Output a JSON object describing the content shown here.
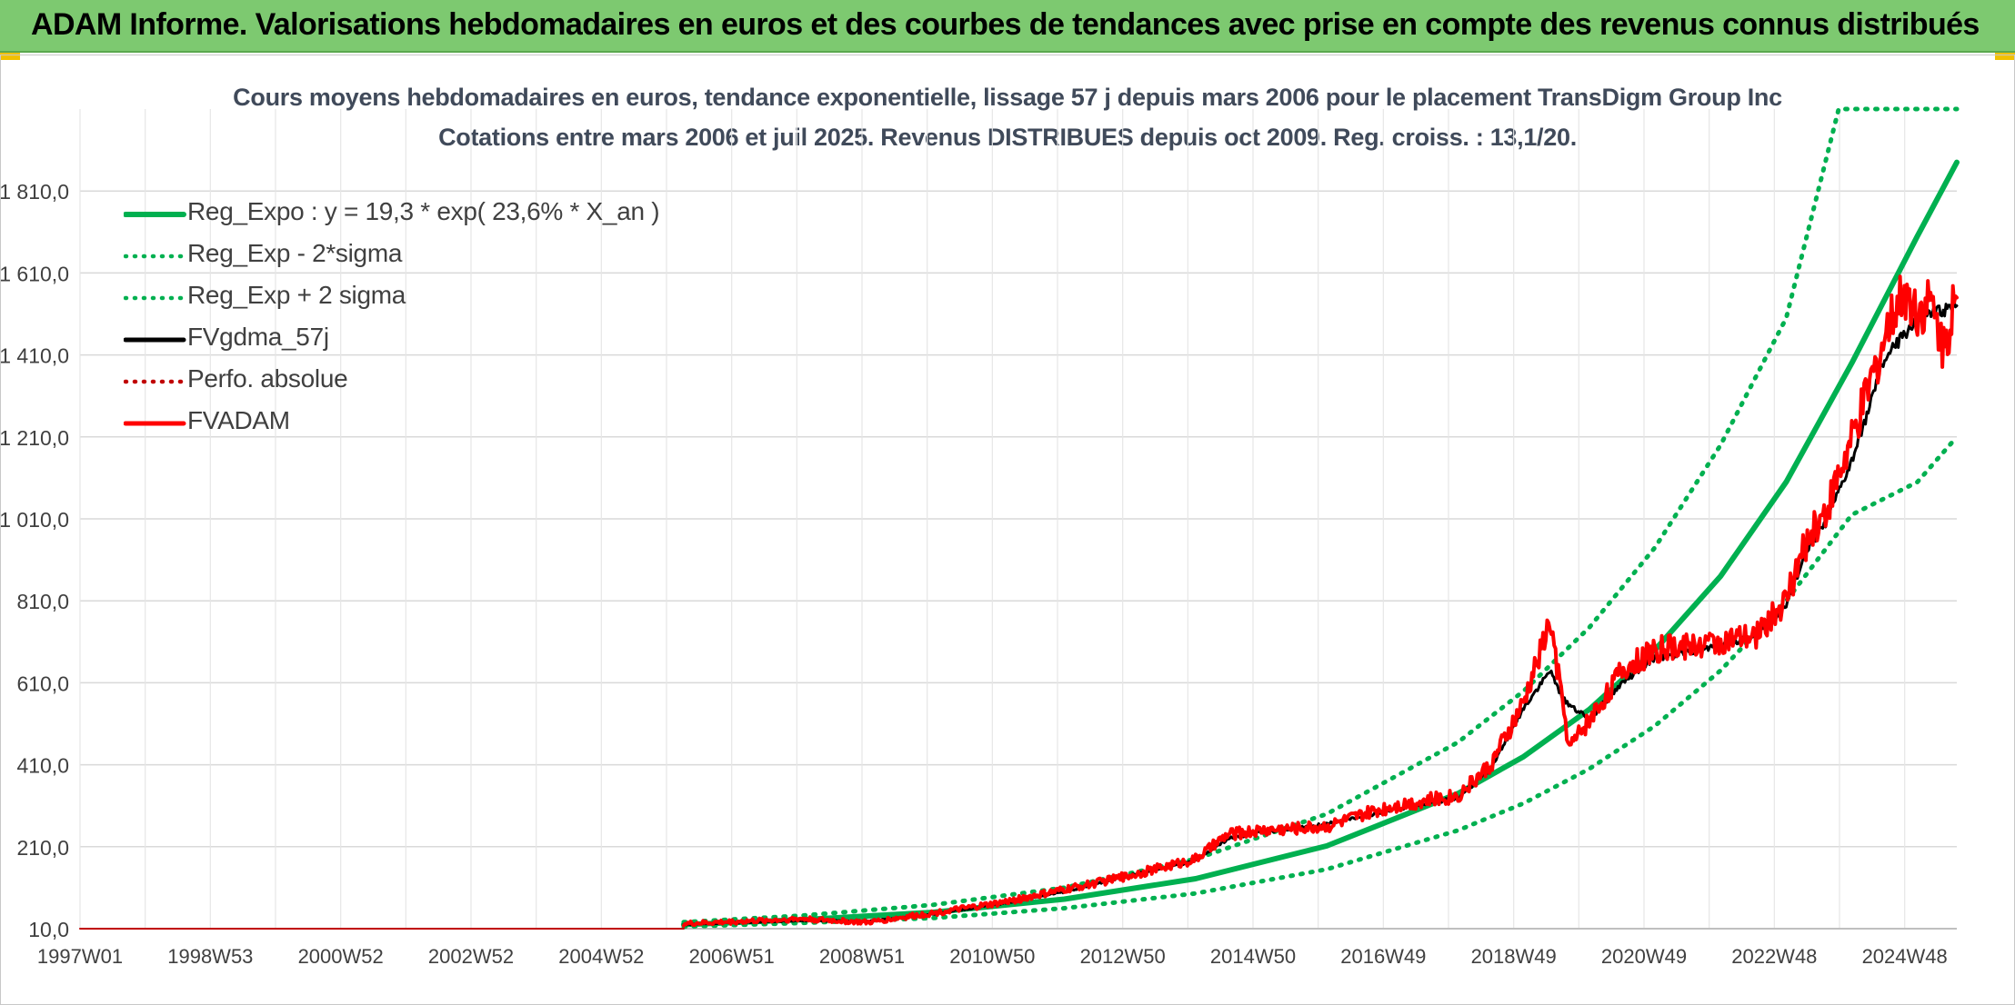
{
  "banner": {
    "title": "ADAM Informe. Valorisations hebdomadaires en euros et des courbes de tendances avec prise en compte des revenus connus distribués"
  },
  "colors": {
    "banner_bg": "#7dc970",
    "reg_green": "#00b050",
    "dotted_green": "#00b050",
    "fvgdma_black": "#000000",
    "fvadam_red": "#ff0000",
    "perfo_red": "#c00000",
    "grid": "#d9d9d9"
  },
  "chart_data": {
    "type": "line",
    "title": "Cours moyens hebdomadaires en euros, tendance exponentielle, lissage 57 j depuis mars 2006 pour le placement TransDigm Group Inc",
    "subtitle": "Cotations entre mars 2006 et juil 2025. Revenus DISTRIBUES depuis oct 2009. Reg. croiss. : 13,1/20.",
    "x_tick_labels": [
      "1997W01",
      "1998W53",
      "2000W52",
      "2002W52",
      "2004W52",
      "2006W51",
      "2008W51",
      "2010W50",
      "2012W50",
      "2014W50",
      "2016W49",
      "2018W49",
      "2020W49",
      "2022W48",
      "2024W48"
    ],
    "x_range_years": [
      1997.0,
      2025.6
    ],
    "y_tick_labels": [
      "10,0",
      "210,0",
      "410,0",
      "610,0",
      "810,0",
      "1 010,0",
      "1 210,0",
      "1 410,0",
      "1 610,0",
      "1 810,0"
    ],
    "ylim": [
      10,
      2010
    ],
    "grid": true,
    "legend_position": "top-left",
    "legend": [
      {
        "label": "Reg_Expo : y = 19,3 * exp( 23,6% *  X_an )",
        "style": "solid",
        "color": "#00b050"
      },
      {
        "label": "Reg_Exp - 2*sigma",
        "style": "dotted",
        "color": "#00b050"
      },
      {
        "label": "Reg_Exp + 2 sigma",
        "style": "dotted",
        "color": "#00b050"
      },
      {
        "label": "FVgdma_57j",
        "style": "solid",
        "color": "#000000"
      },
      {
        "label": "Perfo. absolue",
        "style": "dotted",
        "color": "#c00000"
      },
      {
        "label": "FVADAM",
        "style": "solid",
        "color": "#ff0000"
      }
    ],
    "series": [
      {
        "name": "Reg_Expo : y = 19,3 * exp( 23,6% *  X_an )",
        "x": [
          2006.2,
          2008,
          2010,
          2012,
          2014,
          2016,
          2018,
          2019,
          2020,
          2021,
          2022,
          2023,
          2024,
          2025,
          2025.6
        ],
        "values": [
          20,
          32,
          50,
          82,
          132,
          212,
          340,
          430,
          545,
          690,
          870,
          1100,
          1390,
          1700,
          1880
        ]
      },
      {
        "name": "Reg_Exp - 2*sigma",
        "x": [
          2006.2,
          2008,
          2010,
          2012,
          2014,
          2016,
          2018,
          2019,
          2020,
          2021,
          2022,
          2023,
          2024,
          2025,
          2025.6
        ],
        "values": [
          15,
          24,
          36,
          60,
          96,
          155,
          250,
          316,
          400,
          505,
          640,
          810,
          1020,
          1100,
          1210
        ]
      },
      {
        "name": "Reg_Exp + 2 sigma",
        "x": [
          2006.2,
          2008,
          2010,
          2012,
          2014,
          2016,
          2018,
          2019,
          2020,
          2021,
          2022,
          2023,
          2023.8,
          2025,
          2025.6
        ],
        "values": [
          26,
          42,
          68,
          110,
          180,
          290,
          465,
          590,
          745,
          940,
          1190,
          1500,
          2010,
          2010,
          2010
        ]
      },
      {
        "name": "FVgdma_57j",
        "x": [
          2006.2,
          2007,
          2008,
          2009,
          2010,
          2011,
          2012,
          2013,
          2014,
          2014.5,
          2015,
          2016,
          2017,
          2018,
          2018.5,
          2019,
          2019.4,
          2019.6,
          2020,
          2020.5,
          2021,
          2022,
          2022.5,
          2023,
          2023.3,
          2023.6,
          2024,
          2024.5,
          2025,
          2025.6
        ],
        "values": [
          20,
          25,
          30,
          28,
          45,
          70,
          100,
          140,
          175,
          230,
          245,
          265,
          300,
          330,
          400,
          550,
          640,
          570,
          520,
          610,
          670,
          700,
          720,
          800,
          930,
          1000,
          1150,
          1400,
          1500,
          1530
        ]
      },
      {
        "name": "Perfo. absolue",
        "x": [
          1997.0,
          2006.2
        ],
        "values": [
          10,
          10
        ]
      },
      {
        "name": "FVADAM",
        "x": [
          2006.2,
          2007,
          2008,
          2009,
          2010,
          2011,
          2012,
          2013,
          2014,
          2014.5,
          2015,
          2016,
          2017,
          2018,
          2018.5,
          2019,
          2019.4,
          2019.7,
          2019.9,
          2020,
          2020.5,
          2021,
          2022,
          2022.5,
          2023,
          2023.3,
          2023.6,
          2024,
          2024.5,
          2024.8,
          2025,
          2025.2,
          2025.4,
          2025.6
        ],
        "values": [
          22,
          27,
          34,
          25,
          48,
          72,
          105,
          140,
          180,
          240,
          250,
          260,
          310,
          335,
          410,
          560,
          760,
          450,
          500,
          520,
          640,
          690,
          710,
          720,
          810,
          950,
          1030,
          1200,
          1450,
          1570,
          1520,
          1540,
          1430,
          1550
        ]
      }
    ]
  }
}
